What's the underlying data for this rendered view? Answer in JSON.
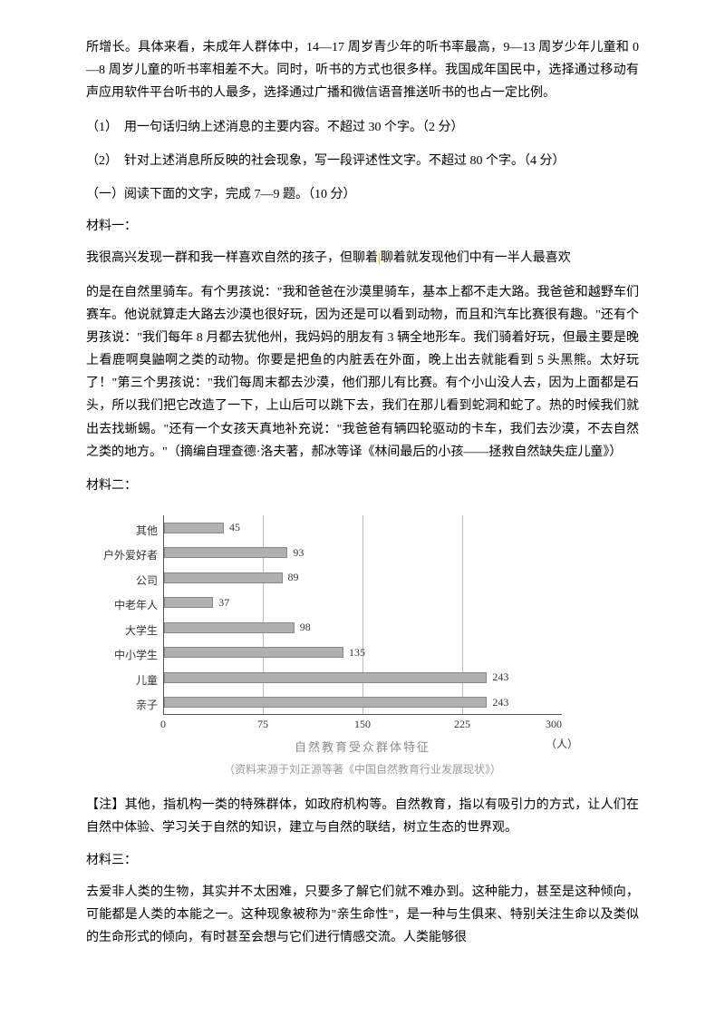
{
  "intro_para": "所增长。具体来看，未成年人群体中，14—17 周岁青少年的听书率最高，9—13 周岁少年儿童和 0—8 周岁儿童的听书率相差不大。同时，听书的方式也很多样。我国成年国民中，选择通过移动有声应用软件平台听书的人最多，选择通过广播和微信语音推送听书的也占一定比例。",
  "q1": "（1）　用一句话归纳上述消息的主要内容。不超过 30 个字。（2 分）",
  "q2": "（2）　针对上述消息所反映的社会现象，写一段评述性文字。不超过 80 个字。（4 分）",
  "section_heading": "（一）阅读下面的文字，完成 7—9 题。（10 分）",
  "material1_title": "材料一：",
  "material1_p1_a": "我很高兴发现一群和我一样喜欢自然的孩子，但聊着",
  "material1_p1_b": "聊着就发现他们中有一半人最喜欢",
  "material1_p2": "的是在自然里骑车。有个男孩说：\"我和爸爸在沙漠里骑车，基本上都不走大路。我爸爸和越野车们赛车。他说就算走大路去沙漠也很好玩，因为还是可以看到动物，而且和汽车比赛很有趣。\"还有个男孩说：\"我们每年 8 月都去犹他州，我妈妈的朋友有 3 辆全地形车。我们骑着好玩，但最主要是晚上看鹿啊臭鼬啊之类的动物。你要是把鱼的内脏丢在外面，晚上出去就能看到 5 头黑熊。太好玩了！\"第三个男孩说：\"我们每周末都去沙漠，他们那儿有比赛。有个小山没人去，因为上面都是石头，所以我们把它改造了一下，上山后可以跳下去，我们在那儿看到蛇洞和蛇了。热的时候我们就出去找蜥蜴。\"还有一个女孩天真地补充说：\"我爸爸有辆四轮驱动的卡车，我们去沙漠，不去自然之类的地方。\"（摘编自理查德·洛夫著，郝冰等译《林间最后的小孩——拯救自然缺失症儿童》）",
  "material2_title": "材料二：",
  "chart": {
    "type": "bar-horizontal",
    "title": "自然教育受众群体特征",
    "source": "（资料来源于刘正源等著《中国自然教育行业发展现状》）",
    "x_max": 300,
    "x_unit": "（人）",
    "x_ticks": [
      0,
      75,
      150,
      225,
      300
    ],
    "bar_color": "#b0b0b0",
    "categories": [
      {
        "label": "其他",
        "value": 45
      },
      {
        "label": "户外爱好者",
        "value": 93
      },
      {
        "label": "公司",
        "value": 89
      },
      {
        "label": "中老年人",
        "value": 37
      },
      {
        "label": "大学生",
        "value": 98
      },
      {
        "label": "中小学生",
        "value": 135
      },
      {
        "label": "儿童",
        "value": 243
      },
      {
        "label": "亲子",
        "value": 243
      }
    ]
  },
  "note": "【注】其他，指机构一类的特殊群体，如政府机构等。自然教育，指以有吸引力的方式，让人们在自然中体验、学习关于自然的知识，建立与自然的联结，树立生态的世界观。",
  "material3_title": "材料三：",
  "material3_p1": "去爱非人类的生物，其实并不太困难，只要多了解它们就不难办到。这种能力，甚至是这种倾向，可能都是人类的本能之一。这种现象被称为\"亲生命性\"，是一种与生俱来、特别关注生命以及类似的生命形式的倾向，有时甚至会想与它们进行情感交流。人类能够很"
}
